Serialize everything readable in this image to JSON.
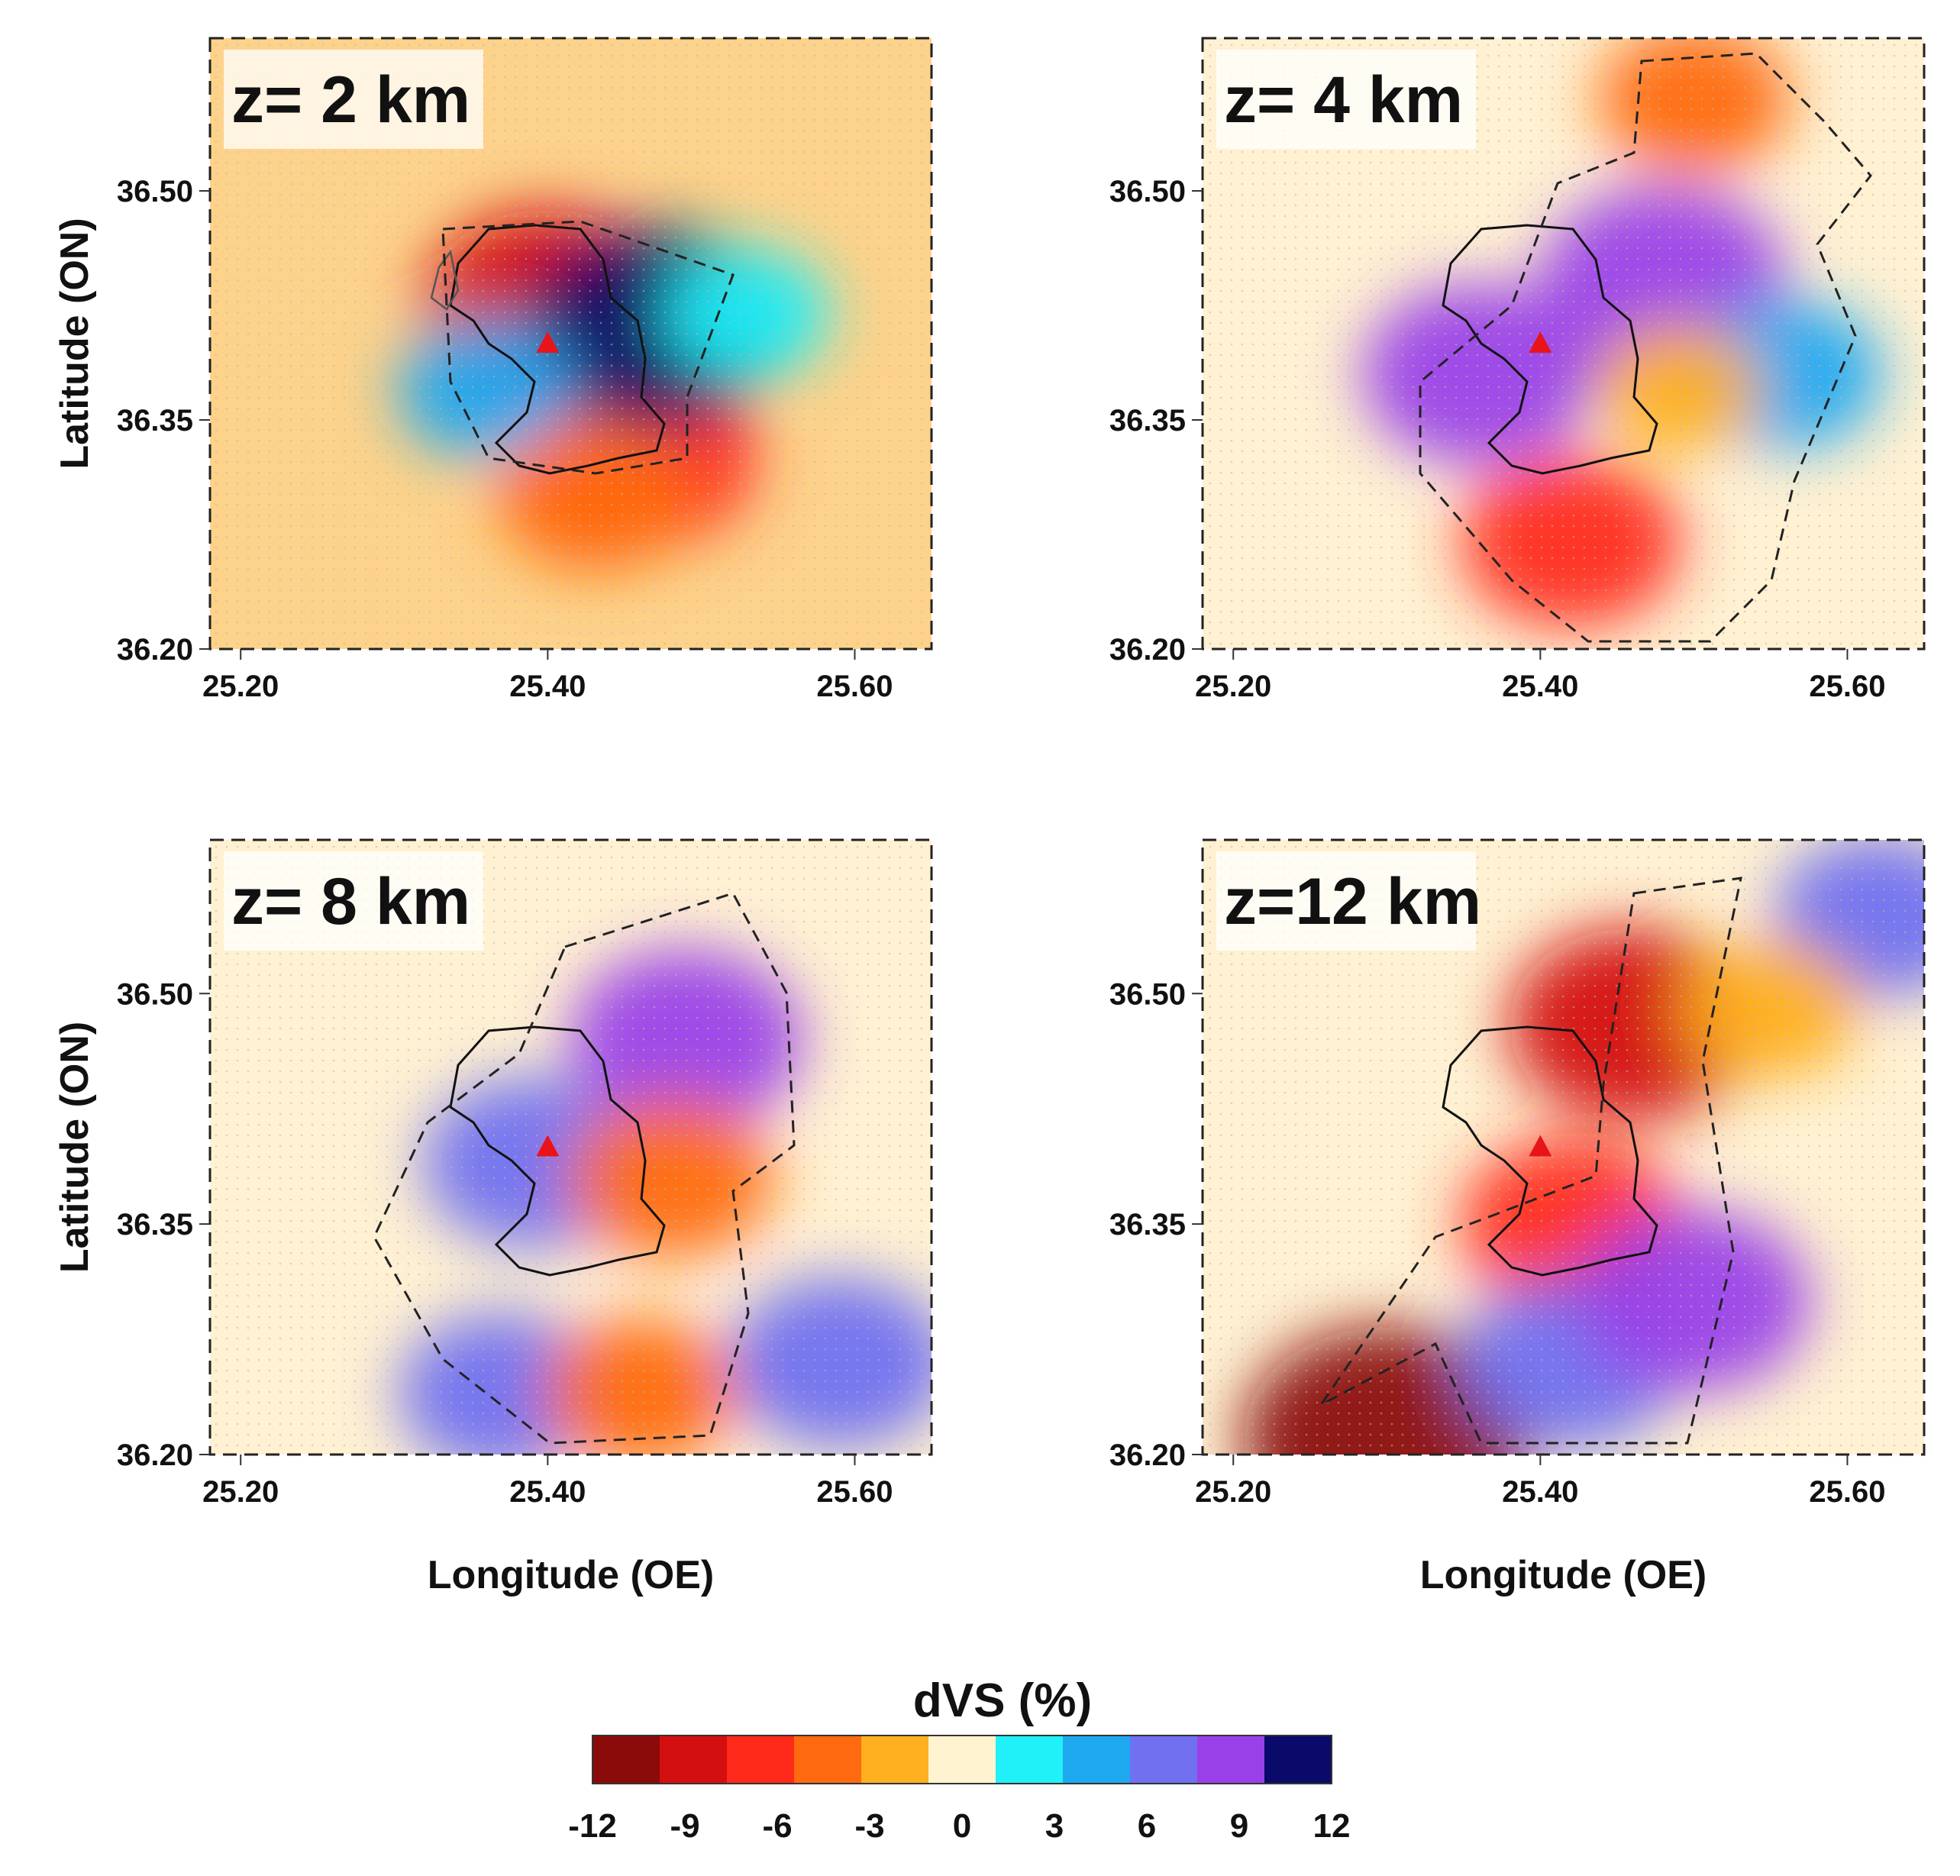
{
  "chart_data": {
    "type": "heatmap",
    "colorbar": {
      "title": "dVS (%)",
      "ticks": [
        "-12",
        "-9",
        "-6",
        "-3",
        "0",
        "3",
        "6",
        "9",
        "12"
      ],
      "range": [
        -12,
        12
      ],
      "colors": [
        "#8b0a0a",
        "#d40f0f",
        "#ff2a1a",
        "#ff6a10",
        "#ffb020",
        "#fff3d0",
        "#20f0f8",
        "#1ea8f0",
        "#7070f0",
        "#9a40e8",
        "#0a0a6a"
      ]
    },
    "panels": [
      {
        "label": "z= 2 km",
        "depth_km": 2,
        "ylabel": "Latitude (ON)",
        "xlabel": "",
        "xticks": [
          "25.20",
          "25.40",
          "25.60"
        ],
        "yticks": [
          "36.50",
          "36.35",
          "36.20"
        ],
        "xlim": [
          25.18,
          25.65
        ],
        "ylim": [
          36.2,
          36.6
        ],
        "anomalies": [
          {
            "lon": 25.4,
            "lat": 36.425,
            "dvs": -8
          },
          {
            "lon": 25.46,
            "lat": 36.325,
            "dvs": -7
          },
          {
            "lon": 25.47,
            "lat": 36.41,
            "dvs": 9
          },
          {
            "lon": 25.36,
            "lat": 36.37,
            "dvs": 3
          },
          {
            "lon": 25.43,
            "lat": 36.3,
            "dvs": -4
          },
          {
            "lon": 25.53,
            "lat": 36.42,
            "dvs": 2
          }
        ],
        "volcano": {
          "lon": 25.4,
          "lat": 36.4
        }
      },
      {
        "label": "z= 4 km",
        "depth_km": 4,
        "ylabel": "",
        "xlabel": "",
        "xticks": [
          "25.20",
          "25.40",
          "25.60"
        ],
        "yticks": [
          "36.50",
          "36.35",
          "36.20"
        ],
        "xlim": [
          25.18,
          25.65
        ],
        "ylim": [
          36.2,
          36.6
        ],
        "anomalies": [
          {
            "lon": 25.48,
            "lat": 36.44,
            "dvs": 8
          },
          {
            "lon": 25.36,
            "lat": 36.38,
            "dvs": 7
          },
          {
            "lon": 25.42,
            "lat": 36.27,
            "dvs": -6
          },
          {
            "lon": 25.5,
            "lat": 36.56,
            "dvs": -4
          },
          {
            "lon": 25.56,
            "lat": 36.38,
            "dvs": 4
          },
          {
            "lon": 25.49,
            "lat": 36.37,
            "dvs": -2
          }
        ],
        "volcano": {
          "lon": 25.4,
          "lat": 36.4
        }
      },
      {
        "label": "z= 8 km",
        "depth_km": 8,
        "ylabel": "Latitude (ON)",
        "xlabel": "Longitude (OE)",
        "xticks": [
          "25.20",
          "25.40",
          "25.60"
        ],
        "yticks": [
          "36.50",
          "36.35",
          "36.20"
        ],
        "xlim": [
          25.18,
          25.65
        ],
        "ylim": [
          36.2,
          36.6
        ],
        "anomalies": [
          {
            "lon": 25.49,
            "lat": 36.47,
            "dvs": 7
          },
          {
            "lon": 25.39,
            "lat": 36.39,
            "dvs": 6
          },
          {
            "lon": 25.48,
            "lat": 36.38,
            "dvs": -5
          },
          {
            "lon": 25.37,
            "lat": 36.24,
            "dvs": 5
          },
          {
            "lon": 25.46,
            "lat": 36.24,
            "dvs": -4
          },
          {
            "lon": 25.59,
            "lat": 36.26,
            "dvs": 6
          }
        ],
        "volcano": {
          "lon": 25.4,
          "lat": 36.4
        }
      },
      {
        "label": "z=12 km",
        "depth_km": 12,
        "ylabel": "",
        "xlabel": "Longitude (OE)",
        "xticks": [
          "25.20",
          "25.40",
          "25.60"
        ],
        "yticks": [
          "36.50",
          "36.35",
          "36.20"
        ],
        "xlim": [
          25.18,
          25.65
        ],
        "ylim": [
          36.2,
          36.6
        ],
        "anomalies": [
          {
            "lon": 25.46,
            "lat": 36.48,
            "dvs": -8
          },
          {
            "lon": 25.42,
            "lat": 36.35,
            "dvs": -6
          },
          {
            "lon": 25.3,
            "lat": 36.21,
            "dvs": -11
          },
          {
            "lon": 25.42,
            "lat": 36.26,
            "dvs": 6
          },
          {
            "lon": 25.5,
            "lat": 36.3,
            "dvs": 7
          },
          {
            "lon": 25.62,
            "lat": 36.55,
            "dvs": 5
          },
          {
            "lon": 25.55,
            "lat": 36.49,
            "dvs": -3
          }
        ],
        "volcano": {
          "lon": 25.4,
          "lat": 36.4
        }
      }
    ]
  }
}
